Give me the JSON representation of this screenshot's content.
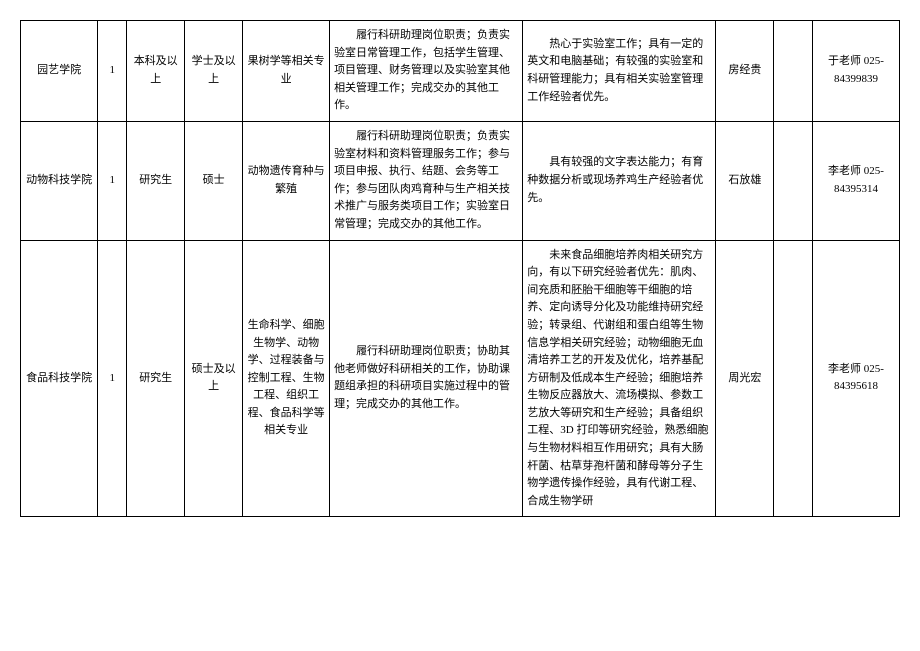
{
  "table": {
    "rows": [
      {
        "college": "园艺学院",
        "count": "1",
        "education": "本科及以上",
        "degree": "学士及以上",
        "major": "果树学等相关专业",
        "duties": "履行科研助理岗位职责；负责实验室日常管理工作，包括学生管理、项目管理、财务管理以及实验室其他相关管理工作；完成交办的其他工作。",
        "requirements": "热心于实验室工作；具有一定的英文和电脑基础；有较强的实验室和科研管理能力；具有相关实验室管理工作经验者优先。",
        "leader": "房经贵",
        "spacer": "",
        "contact": "于老师 025-84399839"
      },
      {
        "college": "动物科技学院",
        "count": "1",
        "education": "研究生",
        "degree": "硕士",
        "major": "动物遗传育种与繁殖",
        "duties": "履行科研助理岗位职责；负责实验室材料和资料管理服务工作；参与项目申报、执行、结题、会务等工作；参与团队肉鸡育种与生产相关技术推广与服务类项目工作；实验室日常管理；完成交办的其他工作。",
        "requirements": "具有较强的文字表达能力；有育种数据分析或现场养鸡生产经验者优先。",
        "leader": "石放雄",
        "spacer": "",
        "contact": "李老师 025-84395314"
      },
      {
        "college": "食品科技学院",
        "count": "1",
        "education": "研究生",
        "degree": "硕士及以上",
        "major": "生命科学、细胞生物学、动物学、过程装备与控制工程、生物工程、组织工程、食品科学等相关专业",
        "duties": "履行科研助理岗位职责；协助其他老师做好科研相关的工作，协助课题组承担的科研项目实施过程中的管理；完成交办的其他工作。",
        "requirements": "未来食品细胞培养肉相关研究方向，有以下研究经验者优先：肌肉、间充质和胚胎干细胞等干细胞的培养、定向诱导分化及功能维持研究经验；转录组、代谢组和蛋白组等生物信息学相关研究经验；动物细胞无血清培养工艺的开发及优化，培养基配方研制及低成本生产经验；细胞培养生物反应器放大、流场模拟、参数工艺放大等研究和生产经验；具备组织工程、3D 打印等研究经验，熟悉细胞与生物材料相互作用研究；具有大肠杆菌、枯草芽孢杆菌和酵母等分子生物学遗传操作经验，具有代谢工程、合成生物学研",
        "leader": "周光宏",
        "spacer": "",
        "contact": "李老师 025-84395618"
      }
    ]
  }
}
